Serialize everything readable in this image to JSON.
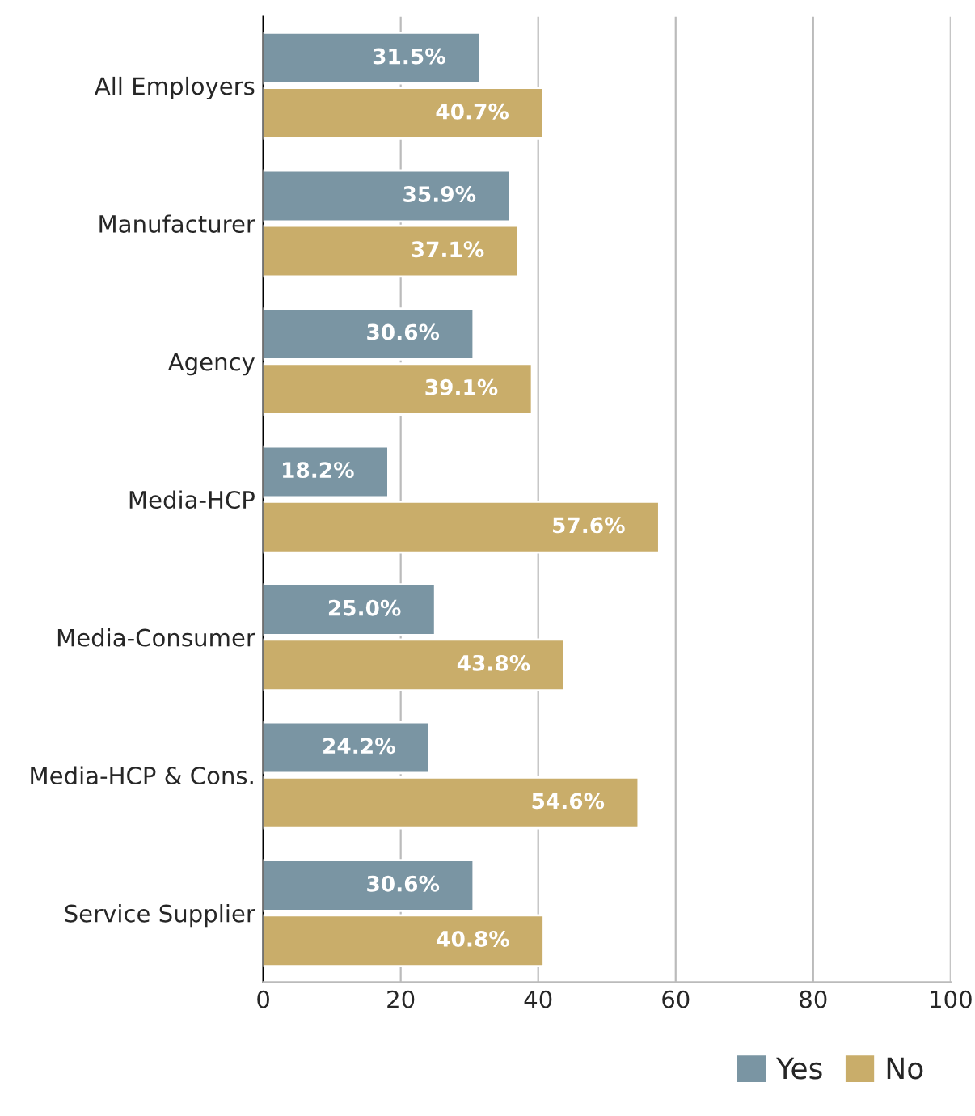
{
  "chart_data": {
    "type": "bar",
    "orientation": "horizontal",
    "categories": [
      "All Employers",
      "Manufacturer",
      "Agency",
      "Media-HCP",
      "Media-Consumer",
      "Media-HCP & Cons.",
      "Service Supplier"
    ],
    "series": [
      {
        "name": "Yes",
        "color": "#7a95a3",
        "values": [
          31.5,
          35.9,
          30.6,
          18.2,
          25.0,
          24.2,
          30.6
        ],
        "value_labels": [
          "31.5%",
          "35.9%",
          "30.6%",
          "18.2%",
          "25.0%",
          "24.2%",
          "30.6%"
        ]
      },
      {
        "name": "No",
        "color": "#c9ad6a",
        "values": [
          40.7,
          37.1,
          39.1,
          57.6,
          43.8,
          54.6,
          40.8
        ],
        "value_labels": [
          "40.7%",
          "37.1%",
          "39.1%",
          "57.6%",
          "43.8%",
          "54.6%",
          "40.8%"
        ]
      }
    ],
    "xlim": [
      0,
      100
    ],
    "xticks": [
      0,
      20,
      40,
      60,
      80,
      100
    ],
    "grid": "x",
    "legend": "bottom right"
  }
}
